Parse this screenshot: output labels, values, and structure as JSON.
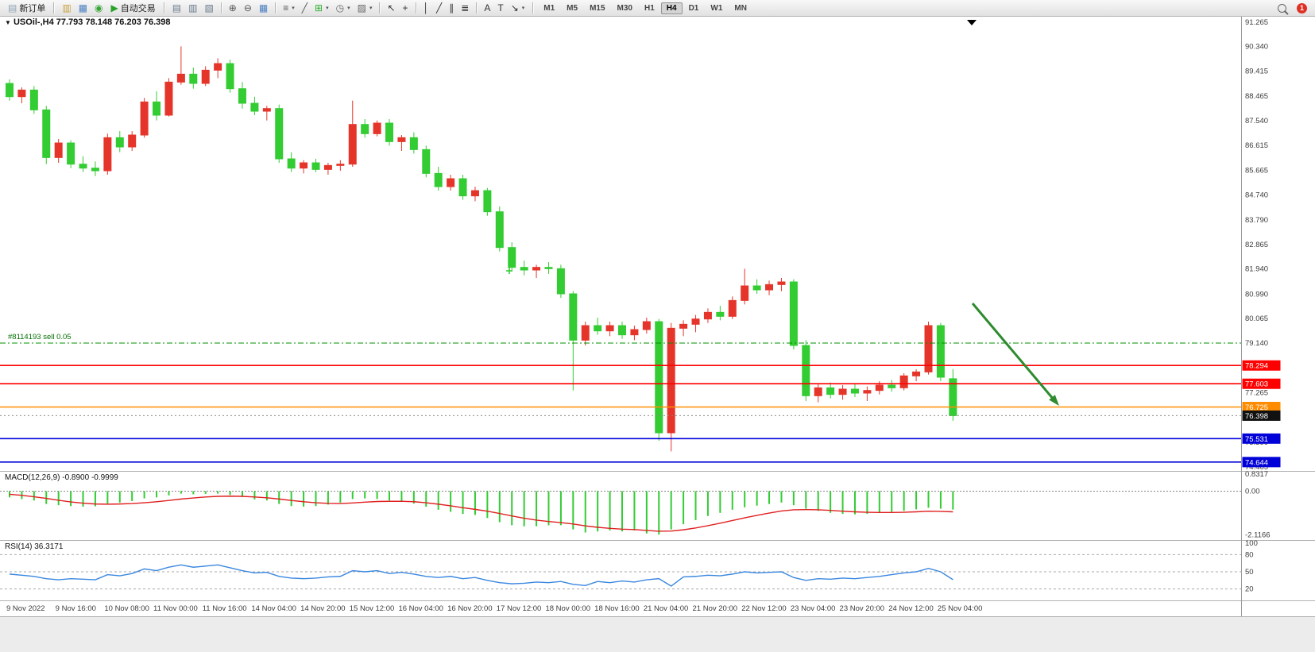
{
  "toolbar": {
    "new_order_label": "新订单",
    "autotrading_label": "自动交易",
    "notification_count": "1",
    "quick_icons": [
      {
        "name": "charts-icon",
        "glyph": "▥",
        "color": "#C9A23B"
      },
      {
        "name": "terminal-icon",
        "glyph": "▦",
        "color": "#4A7FC1"
      },
      {
        "name": "community-icon",
        "glyph": "◉",
        "color": "#3AA63A"
      }
    ],
    "tool_icons": [
      {
        "name": "data-window-icon",
        "glyph": "▤",
        "color": "#6B7B8D"
      },
      {
        "name": "market-depth-icon",
        "glyph": "▥",
        "color": "#6B7B8D"
      },
      {
        "name": "object-list-icon",
        "glyph": "▧",
        "color": "#6B7B8D"
      },
      {
        "sep": true
      },
      {
        "name": "zoom-in-icon",
        "glyph": "⊕",
        "color": "#555555"
      },
      {
        "name": "zoom-out-icon",
        "glyph": "⊖",
        "color": "#555555"
      },
      {
        "name": "tile-windows-icon",
        "glyph": "▦",
        "color": "#4A7FC1"
      },
      {
        "sep": true
      },
      {
        "name": "bar-chart-type-icon",
        "glyph": "≡",
        "color": "#555555",
        "dropdown": true
      },
      {
        "name": "line-chart-type-icon",
        "glyph": "╱",
        "color": "#555555"
      },
      {
        "name": "new-chart-icon",
        "glyph": "⊞",
        "color": "#2EAF2E",
        "dropdown": true
      },
      {
        "name": "periods-icon",
        "glyph": "◷",
        "color": "#666666",
        "dropdown": true
      },
      {
        "name": "templates-icon",
        "glyph": "▨",
        "color": "#666666",
        "dropdown": true
      },
      {
        "sep": true
      },
      {
        "name": "cursor-icon",
        "glyph": "↖",
        "color": "#333333"
      },
      {
        "name": "crosshair-icon",
        "glyph": "+",
        "color": "#333333"
      },
      {
        "sep": true
      },
      {
        "name": "vertical-line-icon",
        "glyph": "│",
        "color": "#333333"
      },
      {
        "name": "trendline-icon",
        "glyph": "╱",
        "color": "#333333"
      },
      {
        "name": "channel-icon",
        "glyph": "∥",
        "color": "#333333"
      },
      {
        "name": "fibonacci-icon",
        "glyph": "≣",
        "color": "#333333"
      },
      {
        "sep": true
      },
      {
        "name": "text-icon",
        "glyph": "A",
        "color": "#333333"
      },
      {
        "name": "text-label-icon",
        "glyph": "T",
        "color": "#333333"
      },
      {
        "name": "arrows-object-icon",
        "glyph": "↘",
        "color": "#333333",
        "dropdown": true
      }
    ],
    "timeframes": [
      "M1",
      "M5",
      "M15",
      "M30",
      "H1",
      "H4",
      "D1",
      "W1",
      "MN"
    ],
    "active_timeframe": "H4"
  },
  "chart": {
    "collapse_arrow": "▼",
    "title": "USOil-,H4  77.793 78.148 76.203 76.398",
    "position_label": "#8114193 sell 0.05",
    "position_line": {
      "price": 79.14,
      "color": "#009000"
    },
    "current_price": "76.398",
    "colors": {
      "up": "#E5352B",
      "down": "#33CC33"
    },
    "price_axis_labels": [
      "91.265",
      "90.340",
      "89.415",
      "88.465",
      "87.540",
      "86.615",
      "85.665",
      "84.740",
      "83.790",
      "82.865",
      "81.940",
      "80.990",
      "80.065",
      "79.140",
      "78.215",
      "77.265",
      "76.340",
      "75.390",
      "74.465"
    ],
    "price_lines": [
      {
        "label": "78.294",
        "price": 78.294,
        "color": "#FF0000",
        "style": "solid",
        "badge": "#FF0000"
      },
      {
        "label": "77.603",
        "price": 77.603,
        "color": "#FF0000",
        "style": "solid",
        "badge": "#FF0000"
      },
      {
        "label": "76.725",
        "price": 76.725,
        "color": "#FF8C00",
        "style": "solid",
        "badge": "#FF8C00"
      },
      {
        "label": "76.398",
        "price": 76.398,
        "color": "#888888",
        "style": "dotted",
        "badge": "#111111"
      },
      {
        "label": "75.531",
        "price": 75.531,
        "color": "#0000D8",
        "style": "solid",
        "badge": "#0000D8"
      },
      {
        "label": "74.644",
        "price": 74.644,
        "color": "#0000D8",
        "style": "solid",
        "badge": "#0000D8"
      }
    ],
    "time_axis_labels": [
      "9 Nov 2022",
      "9 Nov 16:00",
      "10 Nov 08:00",
      "11 Nov 00:00",
      "11 Nov 16:00",
      "14 Nov 04:00",
      "14 Nov 20:00",
      "15 Nov 12:00",
      "16 Nov 04:00",
      "16 Nov 20:00",
      "17 Nov 12:00",
      "18 Nov 00:00",
      "18 Nov 16:00",
      "21 Nov 04:00",
      "21 Nov 20:00",
      "22 Nov 12:00",
      "23 Nov 04:00",
      "23 Nov 20:00",
      "24 Nov 12:00",
      "25 Nov 04:00"
    ],
    "candles": [
      [
        88.95,
        89.1,
        88.3,
        88.45
      ],
      [
        88.45,
        88.8,
        88.2,
        88.7
      ],
      [
        88.7,
        88.85,
        87.8,
        87.95
      ],
      [
        87.95,
        88.1,
        85.9,
        86.15
      ],
      [
        86.15,
        86.85,
        85.95,
        86.7
      ],
      [
        86.7,
        86.8,
        85.75,
        85.9
      ],
      [
        85.9,
        86.2,
        85.6,
        85.75
      ],
      [
        85.75,
        86.0,
        85.45,
        85.65
      ],
      [
        85.65,
        87.05,
        85.5,
        86.9
      ],
      [
        86.9,
        87.15,
        86.35,
        86.55
      ],
      [
        86.55,
        87.15,
        86.4,
        87.0
      ],
      [
        87.0,
        88.4,
        86.9,
        88.25
      ],
      [
        88.25,
        88.65,
        87.55,
        87.75
      ],
      [
        87.75,
        89.15,
        87.7,
        89.0
      ],
      [
        89.0,
        90.35,
        88.9,
        89.3
      ],
      [
        89.3,
        89.55,
        88.75,
        88.95
      ],
      [
        88.95,
        89.6,
        88.85,
        89.45
      ],
      [
        89.45,
        89.9,
        89.15,
        89.7
      ],
      [
        89.7,
        89.85,
        88.6,
        88.75
      ],
      [
        88.75,
        89.0,
        88.0,
        88.2
      ],
      [
        88.2,
        88.45,
        87.75,
        87.9
      ],
      [
        87.9,
        88.1,
        87.55,
        88.0
      ],
      [
        88.0,
        88.15,
        85.95,
        86.1
      ],
      [
        86.1,
        86.35,
        85.6,
        85.75
      ],
      [
        85.75,
        86.05,
        85.55,
        85.95
      ],
      [
        85.95,
        86.1,
        85.6,
        85.7
      ],
      [
        85.7,
        85.95,
        85.5,
        85.85
      ],
      [
        85.85,
        86.05,
        85.65,
        85.9
      ],
      [
        85.9,
        88.3,
        85.8,
        87.4
      ],
      [
        87.4,
        87.6,
        86.9,
        87.05
      ],
      [
        87.05,
        87.55,
        86.95,
        87.45
      ],
      [
        87.45,
        87.6,
        86.6,
        86.75
      ],
      [
        86.75,
        87.0,
        86.4,
        86.9
      ],
      [
        86.9,
        87.1,
        86.3,
        86.45
      ],
      [
        86.45,
        86.6,
        85.4,
        85.55
      ],
      [
        85.55,
        85.8,
        84.9,
        85.05
      ],
      [
        85.05,
        85.5,
        84.9,
        85.35
      ],
      [
        85.35,
        85.5,
        84.55,
        84.7
      ],
      [
        84.7,
        85.05,
        84.5,
        84.9
      ],
      [
        84.9,
        85.0,
        83.95,
        84.1
      ],
      [
        84.1,
        84.3,
        82.6,
        82.75
      ],
      [
        82.75,
        82.95,
        81.85,
        82.0
      ],
      [
        82.0,
        82.25,
        81.7,
        81.9
      ],
      [
        81.9,
        82.1,
        81.6,
        82.0
      ],
      [
        82.0,
        82.2,
        81.75,
        81.95
      ],
      [
        81.95,
        82.1,
        80.85,
        81.0
      ],
      [
        81.0,
        81.1,
        77.35,
        79.25
      ],
      [
        79.25,
        79.95,
        79.05,
        79.8
      ],
      [
        79.8,
        80.1,
        79.45,
        79.6
      ],
      [
        79.6,
        79.95,
        79.4,
        79.8
      ],
      [
        79.8,
        79.95,
        79.3,
        79.45
      ],
      [
        79.45,
        79.8,
        79.25,
        79.65
      ],
      [
        79.65,
        80.1,
        79.5,
        79.95
      ],
      [
        79.95,
        80.05,
        75.45,
        75.75
      ],
      [
        75.75,
        79.9,
        75.05,
        79.7
      ],
      [
        79.7,
        80.0,
        79.4,
        79.85
      ],
      [
        79.85,
        80.2,
        79.55,
        80.05
      ],
      [
        80.05,
        80.45,
        79.9,
        80.3
      ],
      [
        80.3,
        80.55,
        80.0,
        80.15
      ],
      [
        80.15,
        80.9,
        80.05,
        80.75
      ],
      [
        80.75,
        81.95,
        80.6,
        81.3
      ],
      [
        81.3,
        81.55,
        81.0,
        81.15
      ],
      [
        81.15,
        81.5,
        80.95,
        81.35
      ],
      [
        81.35,
        81.6,
        81.1,
        81.45
      ],
      [
        81.45,
        81.55,
        78.9,
        79.05
      ],
      [
        79.05,
        79.25,
        76.95,
        77.15
      ],
      [
        77.15,
        77.6,
        76.9,
        77.45
      ],
      [
        77.45,
        77.65,
        77.05,
        77.2
      ],
      [
        77.2,
        77.55,
        77.0,
        77.4
      ],
      [
        77.4,
        77.6,
        77.1,
        77.25
      ],
      [
        77.25,
        77.5,
        76.95,
        77.35
      ],
      [
        77.35,
        77.7,
        77.2,
        77.55
      ],
      [
        77.55,
        77.75,
        77.3,
        77.45
      ],
      [
        77.45,
        78.0,
        77.35,
        77.9
      ],
      [
        77.9,
        78.15,
        77.7,
        78.05
      ],
      [
        78.05,
        79.95,
        77.95,
        79.8
      ],
      [
        79.8,
        79.9,
        77.7,
        77.85
      ],
      [
        77.793,
        78.148,
        76.203,
        76.398
      ]
    ]
  },
  "macd": {
    "label": "MACD(12,26,9) -0.8900 -0.9999",
    "axis_labels": [
      {
        "text": "0.8317",
        "value": 0.8317
      },
      {
        "text": "0.00",
        "value": 0
      },
      {
        "text": "-2.1166",
        "value": -2.1166
      }
    ],
    "colors": {
      "histogram": "#33CC33",
      "signal": "#E02020"
    },
    "histogram": [
      -0.3,
      -0.38,
      -0.45,
      -0.62,
      -0.68,
      -0.72,
      -0.75,
      -0.73,
      -0.6,
      -0.55,
      -0.48,
      -0.35,
      -0.3,
      -0.2,
      -0.12,
      -0.15,
      -0.13,
      -0.12,
      -0.18,
      -0.28,
      -0.4,
      -0.45,
      -0.62,
      -0.72,
      -0.75,
      -0.72,
      -0.65,
      -0.55,
      -0.38,
      -0.35,
      -0.38,
      -0.45,
      -0.5,
      -0.6,
      -0.75,
      -0.9,
      -1.0,
      -1.1,
      -1.15,
      -1.3,
      -1.5,
      -1.65,
      -1.7,
      -1.7,
      -1.65,
      -1.65,
      -1.85,
      -2.0,
      -1.95,
      -1.9,
      -1.95,
      -1.9,
      -2.05,
      -2.1,
      -1.85,
      -1.6,
      -1.4,
      -1.2,
      -1.05,
      -0.9,
      -0.78,
      -0.7,
      -0.62,
      -0.55,
      -0.68,
      -0.85,
      -0.95,
      -1.05,
      -1.1,
      -1.12,
      -1.1,
      -1.05,
      -1.0,
      -0.95,
      -0.88,
      -0.8,
      -0.85,
      -0.89
    ],
    "signal": [
      -0.15,
      -0.2,
      -0.27,
      -0.35,
      -0.44,
      -0.52,
      -0.58,
      -0.62,
      -0.63,
      -0.62,
      -0.6,
      -0.56,
      -0.51,
      -0.45,
      -0.38,
      -0.33,
      -0.28,
      -0.25,
      -0.24,
      -0.25,
      -0.28,
      -0.32,
      -0.38,
      -0.45,
      -0.51,
      -0.56,
      -0.59,
      -0.6,
      -0.57,
      -0.53,
      -0.5,
      -0.49,
      -0.49,
      -0.51,
      -0.56,
      -0.63,
      -0.71,
      -0.8,
      -0.88,
      -0.97,
      -1.08,
      -1.2,
      -1.31,
      -1.4,
      -1.47,
      -1.52,
      -1.59,
      -1.68,
      -1.75,
      -1.8,
      -1.84,
      -1.86,
      -1.9,
      -1.94,
      -1.93,
      -1.87,
      -1.78,
      -1.67,
      -1.55,
      -1.42,
      -1.29,
      -1.17,
      -1.06,
      -0.96,
      -0.9,
      -0.89,
      -0.9,
      -0.93,
      -0.97,
      -1.0,
      -1.02,
      -1.03,
      -1.03,
      -1.02,
      -1.0,
      -0.97,
      -0.98,
      -1.0
    ]
  },
  "rsi": {
    "label": "RSI(14) 36.3171",
    "color": "#3A87E0",
    "axis_labels": [
      {
        "text": "100",
        "value": 100
      },
      {
        "text": "80",
        "value": 80
      },
      {
        "text": "50",
        "value": 50
      },
      {
        "text": "20",
        "value": 20
      }
    ],
    "level_lines": [
      80,
      50,
      20
    ],
    "values": [
      46,
      44,
      42,
      38,
      36,
      38,
      37,
      36,
      45,
      43,
      47,
      55,
      52,
      58,
      62,
      58,
      60,
      62,
      57,
      52,
      48,
      49,
      42,
      39,
      38,
      39,
      41,
      42,
      52,
      50,
      52,
      47,
      49,
      46,
      42,
      40,
      42,
      38,
      40,
      35,
      31,
      29,
      30,
      32,
      31,
      33,
      28,
      26,
      33,
      31,
      34,
      32,
      36,
      38,
      25,
      41,
      42,
      44,
      43,
      46,
      50,
      48,
      49,
      50,
      40,
      35,
      38,
      37,
      39,
      38,
      40,
      42,
      45,
      48,
      50,
      56,
      50,
      36.3
    ]
  },
  "arrow_annotation": {
    "color": "#2E8B2E"
  }
}
